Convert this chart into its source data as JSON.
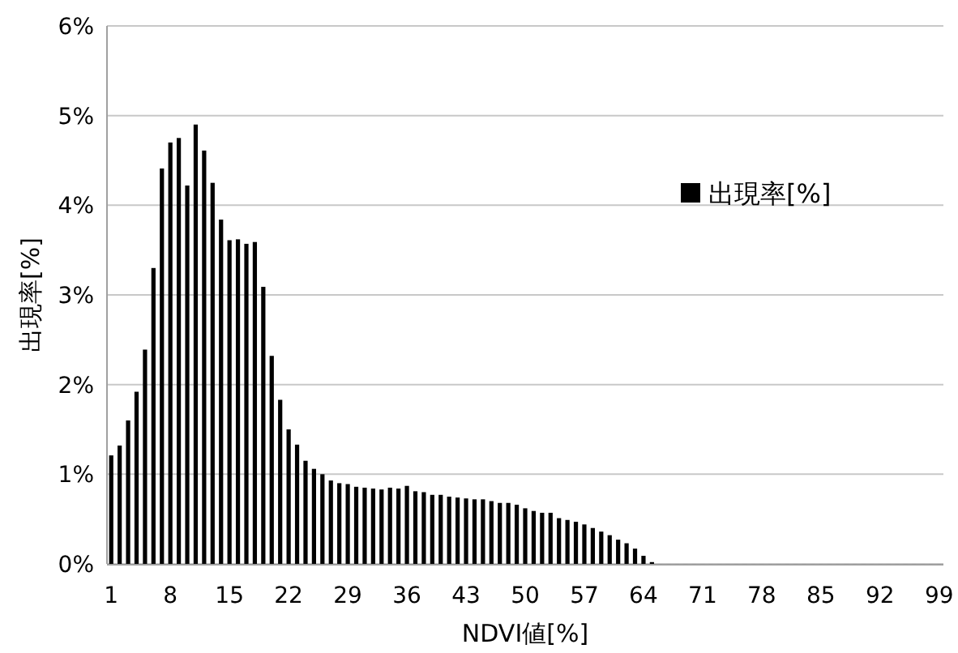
{
  "chart_data": {
    "type": "bar",
    "xlabel": "NDVI値[%]",
    "ylabel": "出現率[%]",
    "categories": [
      "1",
      null,
      null,
      null,
      null,
      null,
      null,
      "8",
      null,
      null,
      null,
      null,
      null,
      null,
      "15",
      null,
      null,
      null,
      null,
      null,
      null,
      "22",
      null,
      null,
      null,
      null,
      null,
      null,
      "29",
      null,
      null,
      null,
      null,
      null,
      null,
      "36",
      null,
      null,
      null,
      null,
      null,
      null,
      "43",
      null,
      null,
      null,
      null,
      null,
      null,
      "50",
      null,
      null,
      null,
      null,
      null,
      null,
      "57",
      null,
      null,
      null,
      null,
      null,
      null,
      "64",
      null,
      null,
      null,
      null,
      null,
      null,
      "71",
      null,
      null,
      null,
      null,
      null,
      null,
      "78",
      null,
      null,
      null,
      null,
      null,
      null,
      "85",
      null,
      null,
      null,
      null,
      null,
      null,
      "92",
      null,
      null,
      null,
      null,
      null,
      null,
      "99"
    ],
    "series": [
      {
        "name": "出現率[%]",
        "color": "#000000",
        "values": [
          1.21,
          1.32,
          1.6,
          1.92,
          2.39,
          3.3,
          4.41,
          4.7,
          4.75,
          4.22,
          4.9,
          4.61,
          4.25,
          3.84,
          3.61,
          3.62,
          3.57,
          3.59,
          3.09,
          2.32,
          1.83,
          1.5,
          1.33,
          1.15,
          1.06,
          1.0,
          0.93,
          0.9,
          0.89,
          0.86,
          0.85,
          0.84,
          0.83,
          0.85,
          0.84,
          0.87,
          0.81,
          0.8,
          0.77,
          0.77,
          0.75,
          0.74,
          0.73,
          0.72,
          0.72,
          0.7,
          0.68,
          0.68,
          0.66,
          0.62,
          0.59,
          0.57,
          0.57,
          0.51,
          0.49,
          0.47,
          0.44,
          0.4,
          0.36,
          0.32,
          0.27,
          0.23,
          0.17,
          0.09,
          0.02,
          0,
          0,
          0,
          0,
          0,
          0,
          0,
          0,
          0,
          0,
          0,
          0,
          0,
          0,
          0,
          0,
          0,
          0,
          0,
          0,
          0,
          0,
          0,
          0,
          0,
          0,
          0,
          0,
          0,
          0,
          0,
          0,
          0,
          0
        ]
      }
    ],
    "ylim": [
      0,
      6
    ],
    "yticks": [
      {
        "value": 0,
        "label": "0%"
      },
      {
        "value": 1,
        "label": "1%"
      },
      {
        "value": 2,
        "label": "2%"
      },
      {
        "value": 3,
        "label": "3%"
      },
      {
        "value": 4,
        "label": "4%"
      },
      {
        "value": 5,
        "label": "5%"
      },
      {
        "value": 6,
        "label": "6%"
      }
    ],
    "grid": "y",
    "legend": "top right"
  }
}
